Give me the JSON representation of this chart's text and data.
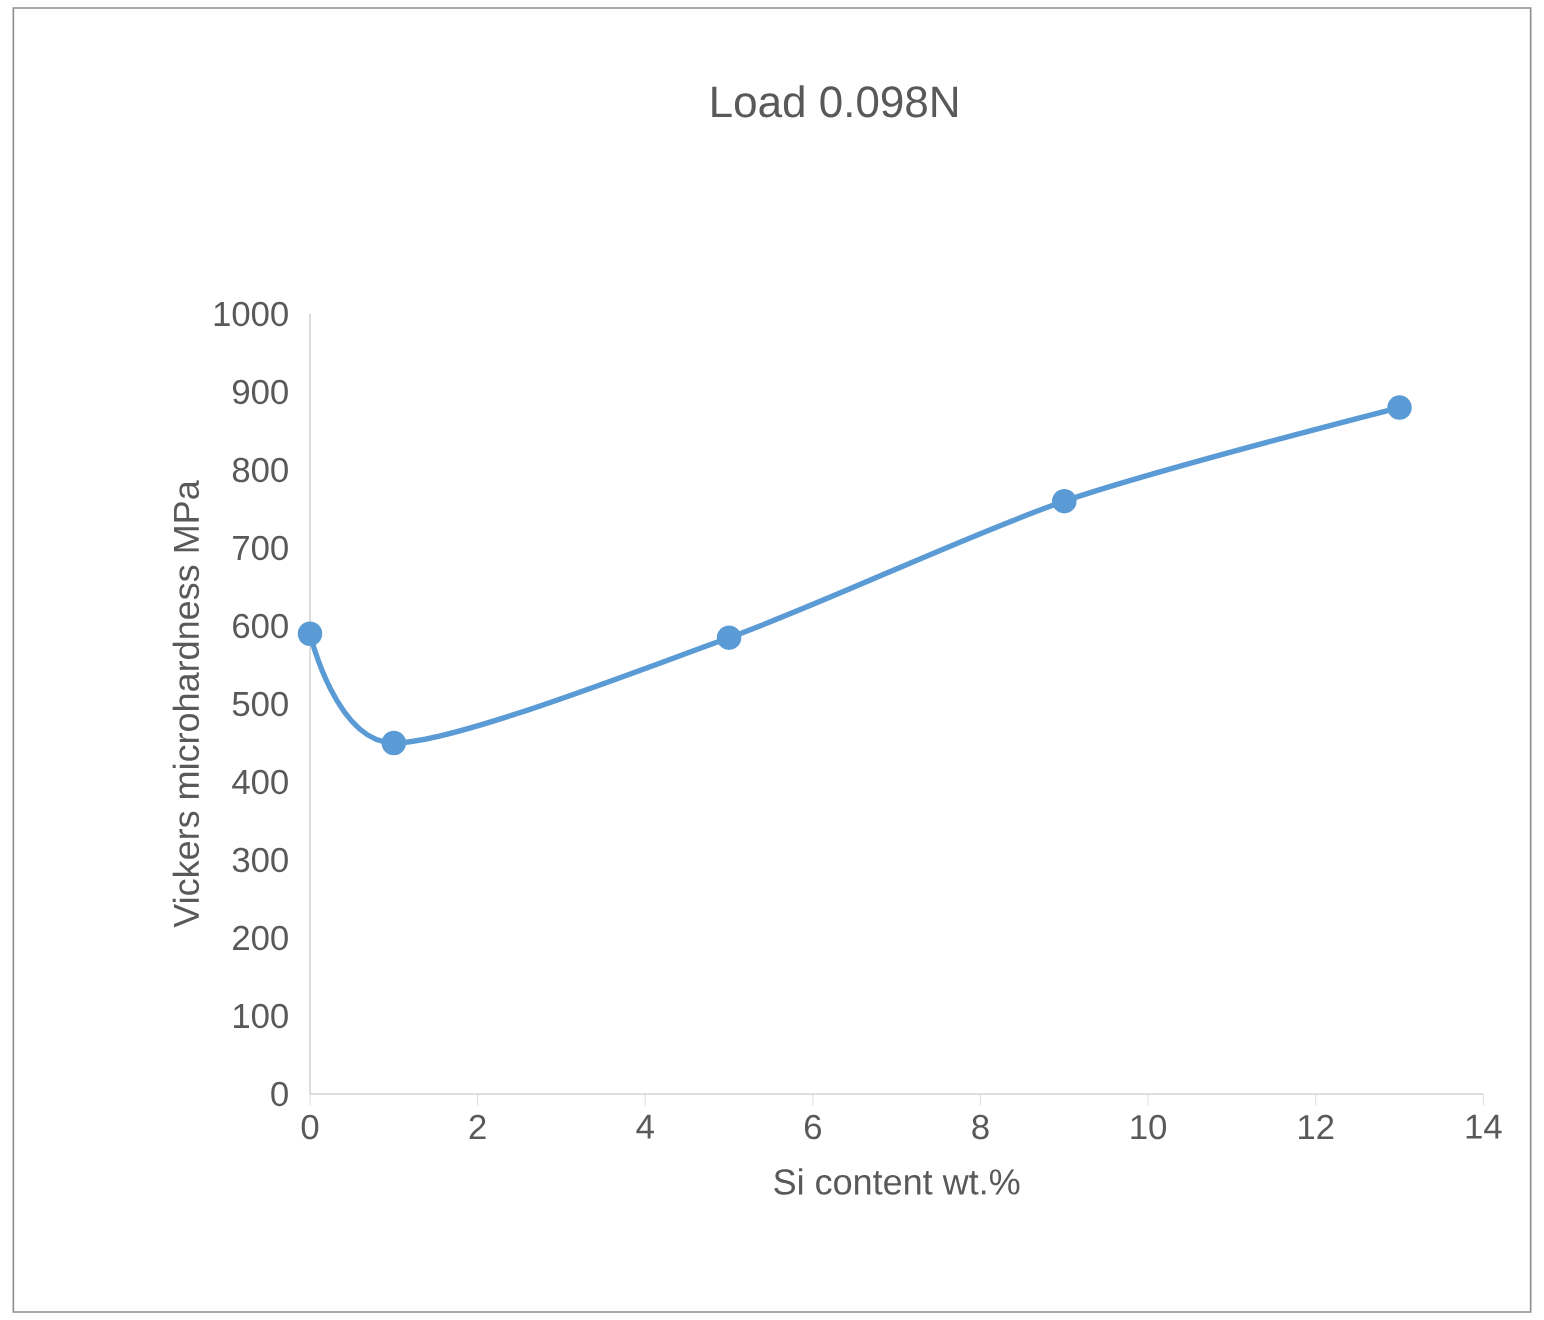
{
  "chart_data": {
    "type": "line",
    "title": "Load 0.098N",
    "xlabel": "Si content wt.%",
    "ylabel": "Vickers microhardness MPa",
    "x": [
      0,
      1,
      5,
      9,
      13
    ],
    "series": [
      {
        "color": "#5b9bd5",
        "values": [
          590,
          450,
          585,
          760,
          880
        ]
      }
    ],
    "xlim": [
      0,
      14
    ],
    "xticks": [
      0,
      2,
      4,
      6,
      8,
      10,
      12,
      14
    ],
    "ylim": [
      0,
      1000
    ],
    "yticks": [
      0,
      100,
      200,
      300,
      400,
      500,
      600,
      700,
      800,
      900,
      1000
    ],
    "marker": "circle",
    "line_style": "solid",
    "grid": false
  }
}
